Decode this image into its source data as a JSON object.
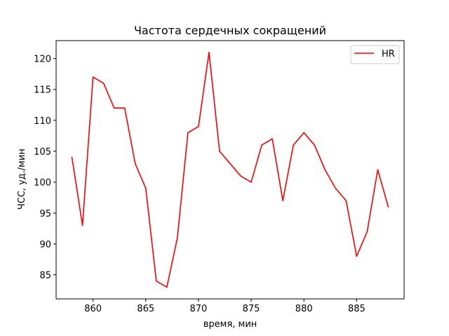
{
  "chart_data": {
    "type": "line",
    "title": "Частота сердечных сокращений",
    "xlabel": "время, мин",
    "ylabel": "ЧСС, уд./мин",
    "xlim": [
      856.5,
      889.5
    ],
    "ylim": [
      81.1,
      122.9
    ],
    "xticks": [
      860,
      865,
      870,
      875,
      880,
      885
    ],
    "yticks": [
      85,
      90,
      95,
      100,
      105,
      110,
      115,
      120
    ],
    "grid": false,
    "legend_position": "top-right",
    "series": [
      {
        "name": "HR",
        "color": "#ff0000",
        "x": [
          858,
          859,
          860,
          861,
          862,
          863,
          864,
          865,
          866,
          867,
          868,
          869,
          870,
          871,
          872,
          873,
          874,
          875,
          876,
          877,
          878,
          879,
          880,
          881,
          882,
          883,
          884,
          885,
          886,
          887,
          888
        ],
        "y": [
          104,
          93,
          117,
          116,
          112,
          112,
          103,
          99,
          84,
          83,
          91,
          108,
          109,
          121,
          105,
          103,
          101,
          100,
          106,
          107,
          97,
          106,
          108,
          106,
          102,
          99,
          97,
          88,
          92,
          102,
          96
        ]
      }
    ]
  }
}
